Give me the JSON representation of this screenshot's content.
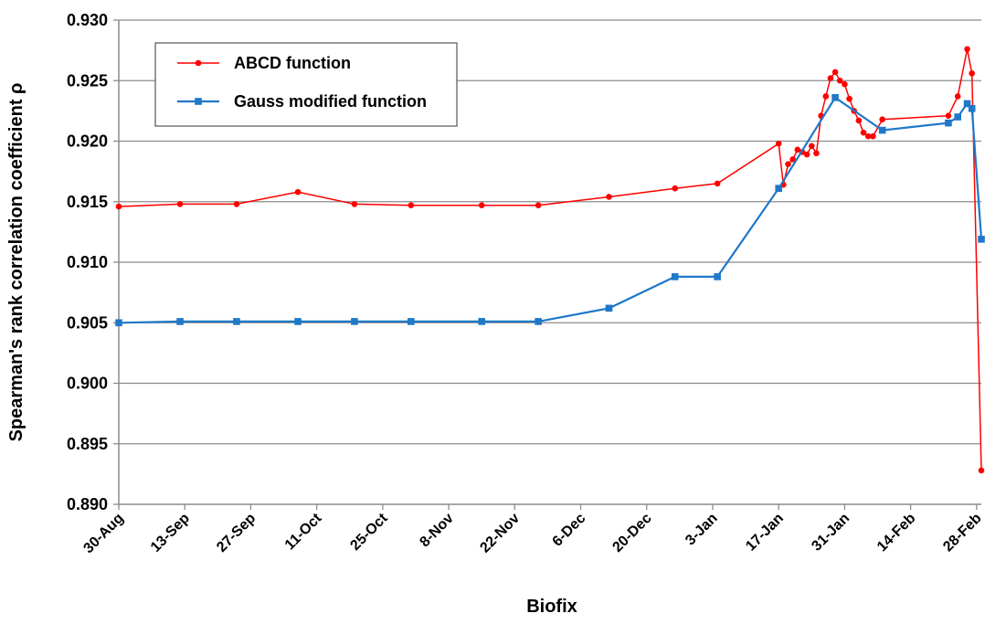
{
  "chart_data": {
    "type": "line",
    "title": "",
    "xlabel": "Biofix",
    "ylabel": "Spearman's rank correlation coefficient ρ",
    "x_axis": {
      "type": "date",
      "start": "2011-08-30",
      "end": "2012-02-29",
      "tick_labels": [
        "30-Aug",
        "13-Sep",
        "27-Sep",
        "11-Oct",
        "25-Oct",
        "8-Nov",
        "22-Nov",
        "6-Dec",
        "20-Dec",
        "3-Jan",
        "17-Jan",
        "31-Jan",
        "14-Feb",
        "28-Feb"
      ],
      "tick_dates": [
        "2011-08-30",
        "2011-09-13",
        "2011-09-27",
        "2011-10-11",
        "2011-10-25",
        "2011-11-08",
        "2011-11-22",
        "2011-12-06",
        "2011-12-20",
        "2012-01-03",
        "2012-01-17",
        "2012-01-31",
        "2012-02-14",
        "2012-02-28"
      ]
    },
    "y_axis": {
      "min": 0.89,
      "max": 0.93,
      "tick_labels": [
        "0.890",
        "0.895",
        "0.900",
        "0.905",
        "0.910",
        "0.915",
        "0.920",
        "0.925",
        "0.930"
      ],
      "tick_values": [
        0.89,
        0.895,
        0.9,
        0.905,
        0.91,
        0.915,
        0.92,
        0.925,
        0.93
      ]
    },
    "grid": "horizontal",
    "legend_position": "top-left",
    "series": [
      {
        "name": "ABCD function",
        "color": "#ff0000",
        "marker": "circle",
        "points": [
          {
            "x": "2011-08-30",
            "y": 0.9146
          },
          {
            "x": "2011-09-12",
            "y": 0.9148
          },
          {
            "x": "2011-09-24",
            "y": 0.9148
          },
          {
            "x": "2011-10-07",
            "y": 0.9158
          },
          {
            "x": "2011-10-19",
            "y": 0.9148
          },
          {
            "x": "2011-10-31",
            "y": 0.9147
          },
          {
            "x": "2011-11-15",
            "y": 0.9147
          },
          {
            "x": "2011-11-27",
            "y": 0.9147
          },
          {
            "x": "2011-12-12",
            "y": 0.9154
          },
          {
            "x": "2011-12-26",
            "y": 0.9161
          },
          {
            "x": "2012-01-04",
            "y": 0.9165
          },
          {
            "x": "2012-01-17",
            "y": 0.9198
          },
          {
            "x": "2012-01-18",
            "y": 0.9164
          },
          {
            "x": "2012-01-19",
            "y": 0.9181
          },
          {
            "x": "2012-01-20",
            "y": 0.9185
          },
          {
            "x": "2012-01-21",
            "y": 0.9193
          },
          {
            "x": "2012-01-22",
            "y": 0.9191
          },
          {
            "x": "2012-01-23",
            "y": 0.9189
          },
          {
            "x": "2012-01-24",
            "y": 0.9196
          },
          {
            "x": "2012-01-25",
            "y": 0.919
          },
          {
            "x": "2012-01-26",
            "y": 0.9221
          },
          {
            "x": "2012-01-27",
            "y": 0.9237
          },
          {
            "x": "2012-01-28",
            "y": 0.9252
          },
          {
            "x": "2012-01-29",
            "y": 0.9257
          },
          {
            "x": "2012-01-30",
            "y": 0.925
          },
          {
            "x": "2012-01-31",
            "y": 0.9247
          },
          {
            "x": "2012-02-01",
            "y": 0.9235
          },
          {
            "x": "2012-02-02",
            "y": 0.9225
          },
          {
            "x": "2012-02-03",
            "y": 0.9217
          },
          {
            "x": "2012-02-04",
            "y": 0.9207
          },
          {
            "x": "2012-02-05",
            "y": 0.9204
          },
          {
            "x": "2012-02-06",
            "y": 0.9204
          },
          {
            "x": "2012-02-08",
            "y": 0.9218
          },
          {
            "x": "2012-02-22",
            "y": 0.9221
          },
          {
            "x": "2012-02-24",
            "y": 0.9237
          },
          {
            "x": "2012-02-26",
            "y": 0.9276
          },
          {
            "x": "2012-02-27",
            "y": 0.9256
          },
          {
            "x": "2012-02-29",
            "y": 0.8928
          }
        ]
      },
      {
        "name": "Gauss modified function",
        "color": "#1f78c8",
        "marker": "square",
        "points": [
          {
            "x": "2011-08-30",
            "y": 0.905
          },
          {
            "x": "2011-09-12",
            "y": 0.9051
          },
          {
            "x": "2011-09-24",
            "y": 0.9051
          },
          {
            "x": "2011-10-07",
            "y": 0.9051
          },
          {
            "x": "2011-10-19",
            "y": 0.9051
          },
          {
            "x": "2011-10-31",
            "y": 0.9051
          },
          {
            "x": "2011-11-15",
            "y": 0.9051
          },
          {
            "x": "2011-11-27",
            "y": 0.9051
          },
          {
            "x": "2011-12-12",
            "y": 0.9062
          },
          {
            "x": "2011-12-26",
            "y": 0.9088
          },
          {
            "x": "2012-01-04",
            "y": 0.9088
          },
          {
            "x": "2012-01-17",
            "y": 0.9161
          },
          {
            "x": "2012-01-29",
            "y": 0.9236
          },
          {
            "x": "2012-02-08",
            "y": 0.9209
          },
          {
            "x": "2012-02-22",
            "y": 0.9215
          },
          {
            "x": "2012-02-24",
            "y": 0.922
          },
          {
            "x": "2012-02-26",
            "y": 0.9231
          },
          {
            "x": "2012-02-27",
            "y": 0.9227
          },
          {
            "x": "2012-02-29",
            "y": 0.9119
          }
        ]
      }
    ]
  }
}
